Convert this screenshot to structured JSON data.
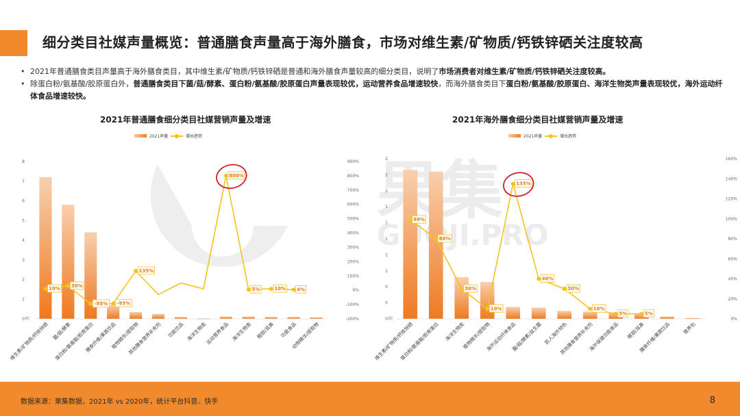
{
  "title": "细分类目社媒声量概览：普通膳食声量高于海外膳食，市场对维生素/矿物质/钙铁锌硒关注度较高",
  "bullets": [
    {
      "plain1": "2021年普通膳食类目声量高于海外膳食类目，其中维生素/矿物质/钙铁锌硒是普通和海外膳食声量较高的细分类目，说明了",
      "bold1": "市场消费者对维生素/矿物质/钙铁锌硒关注度较高。",
      "plain2": "",
      "bold2": "",
      "plain3": "",
      "bold3": "",
      "plain4": "",
      "bold4": ""
    },
    {
      "plain1": "除蛋白粉/氨基酸/胶原蛋白外，",
      "bold1": "普通膳食类目下菌/菇/酵素、蛋白粉/氨基酸/胶原蛋白声量表现较优，运动营养食品增速较快",
      "plain2": "，而海外膳食类目下",
      "bold2": "蛋白粉/氨基酸/胶原蛋白、海洋生物类声量表现较优，海外运动纤体食品增速较快。",
      "plain3": "",
      "bold3": "",
      "plain4": "",
      "bold4": ""
    }
  ],
  "watermark": {
    "text": "果集",
    "subtext": "GUOJI.PRO"
  },
  "chart_data": [
    {
      "type": "bar",
      "title": "2021年普通膳食细分类目社媒营销声量及增速",
      "legend": {
        "bar": "2021声量",
        "line": "增长趋势"
      },
      "unit_label": "万",
      "categories": [
        "维生素/矿物质/钙铁锌硒",
        "菌/菇/酵素",
        "蛋白粉/氨基酸/胶原蛋白",
        "膳食纤维/果蔬饮品",
        "植物精华/提取物",
        "其他膳食营养补充剂",
        "功能饮品",
        "海洋生物类",
        "运动营养食品",
        "海洋生物类",
        "眼部/耳鼻",
        "功能食品",
        "动物精华/提取物"
      ],
      "series": [
        {
          "name": "2021声量",
          "axis": "left",
          "values": [
            7.2,
            5.8,
            4.4,
            0.7,
            0.35,
            0.25,
            0.1,
            0.02,
            0.12,
            0.12,
            0.1,
            0.1,
            0.08
          ]
        },
        {
          "name": "增长趋势",
          "axis": "right",
          "values": [
            10,
            30,
            -95,
            -93,
            135,
            -30,
            50,
            10,
            800,
            5,
            10,
            4,
            null
          ]
        }
      ],
      "labels": [
        {
          "index": 0,
          "text": "10%"
        },
        {
          "index": 1,
          "text": "30%"
        },
        {
          "index": 2,
          "text": "-95%"
        },
        {
          "index": 3,
          "text": "-93%"
        },
        {
          "index": 4,
          "text": "135%"
        },
        {
          "index": 8,
          "text": "800%"
        },
        {
          "index": 9,
          "text": "5%"
        },
        {
          "index": 10,
          "text": "10%"
        },
        {
          "index": 11,
          "text": "4%"
        }
      ],
      "highlight_index": 8,
      "ylim_left": [
        0,
        8
      ],
      "yticks_left": [
        "0",
        "1",
        "2",
        "3",
        "4",
        "5",
        "6",
        "7",
        "8"
      ],
      "ylim_right": [
        -200,
        900
      ],
      "yticks_right": [
        "-200%",
        "-100%",
        "0%",
        "100%",
        "200%",
        "300%",
        "400%",
        "500%",
        "600%",
        "700%",
        "800%",
        "900%"
      ],
      "grid": false
    },
    {
      "type": "bar",
      "title": "2021年海外膳食细分类目社媒营销声量及增速",
      "legend": {
        "bar": "2021声量",
        "line": "增长趋势"
      },
      "unit_label": "万",
      "categories": [
        "维生素/矿物质/钙铁锌硒",
        "蛋白粉/氨基酸/胶原蛋白",
        "海洋生物类",
        "植物精华/提取物",
        "海外运动纤体食品",
        "菌/菇/酵素/益生菌",
        "肌人海外特色",
        "其他膳食营养补充剂",
        "海外保健功能食品",
        "眼部/耳鼻",
        "膳食纤维/果蔬饮品",
        "营养包"
      ],
      "series": [
        {
          "name": "2021声量",
          "axis": "left",
          "values": [
            9.3,
            9.2,
            2.6,
            2.3,
            0.75,
            0.7,
            0.5,
            0.45,
            0.4,
            0.35,
            0.15,
            0.05
          ]
        },
        {
          "name": "增长趋势",
          "axis": "right",
          "values": [
            99,
            80,
            30,
            10,
            135,
            40,
            30,
            10,
            5,
            5,
            null,
            null
          ]
        }
      ],
      "labels": [
        {
          "index": 0,
          "text": "99%"
        },
        {
          "index": 1,
          "text": "80%"
        },
        {
          "index": 2,
          "text": "30%"
        },
        {
          "index": 3,
          "text": "10%"
        },
        {
          "index": 4,
          "text": "135%"
        },
        {
          "index": 5,
          "text": "40%"
        },
        {
          "index": 6,
          "text": "30%"
        },
        {
          "index": 7,
          "text": "10%"
        },
        {
          "index": 8,
          "text": "5%"
        },
        {
          "index": 9,
          "text": "5%"
        }
      ],
      "highlight_index": 4,
      "ylim_left": [
        0,
        10
      ],
      "yticks_left": [
        "0",
        "0",
        "0",
        "1",
        "1",
        "1",
        "1",
        "1",
        "2",
        "2",
        "2"
      ],
      "ylim_right": [
        0,
        160
      ],
      "yticks_right": [
        "0%",
        "20%",
        "40%",
        "60%",
        "80%",
        "100%",
        "120%",
        "140%",
        "160%"
      ],
      "grid": false
    }
  ],
  "footer": {
    "source": "数据来源：果集数据，2021年 vs 2020年，统计平台抖音、快手",
    "page": "8"
  },
  "colors": {
    "accent": "#f08a2c",
    "bar_top": "#f8cfae",
    "bar_bottom": "#ee7a20",
    "line": "#f7c21c",
    "highlight": "#d0202a"
  }
}
